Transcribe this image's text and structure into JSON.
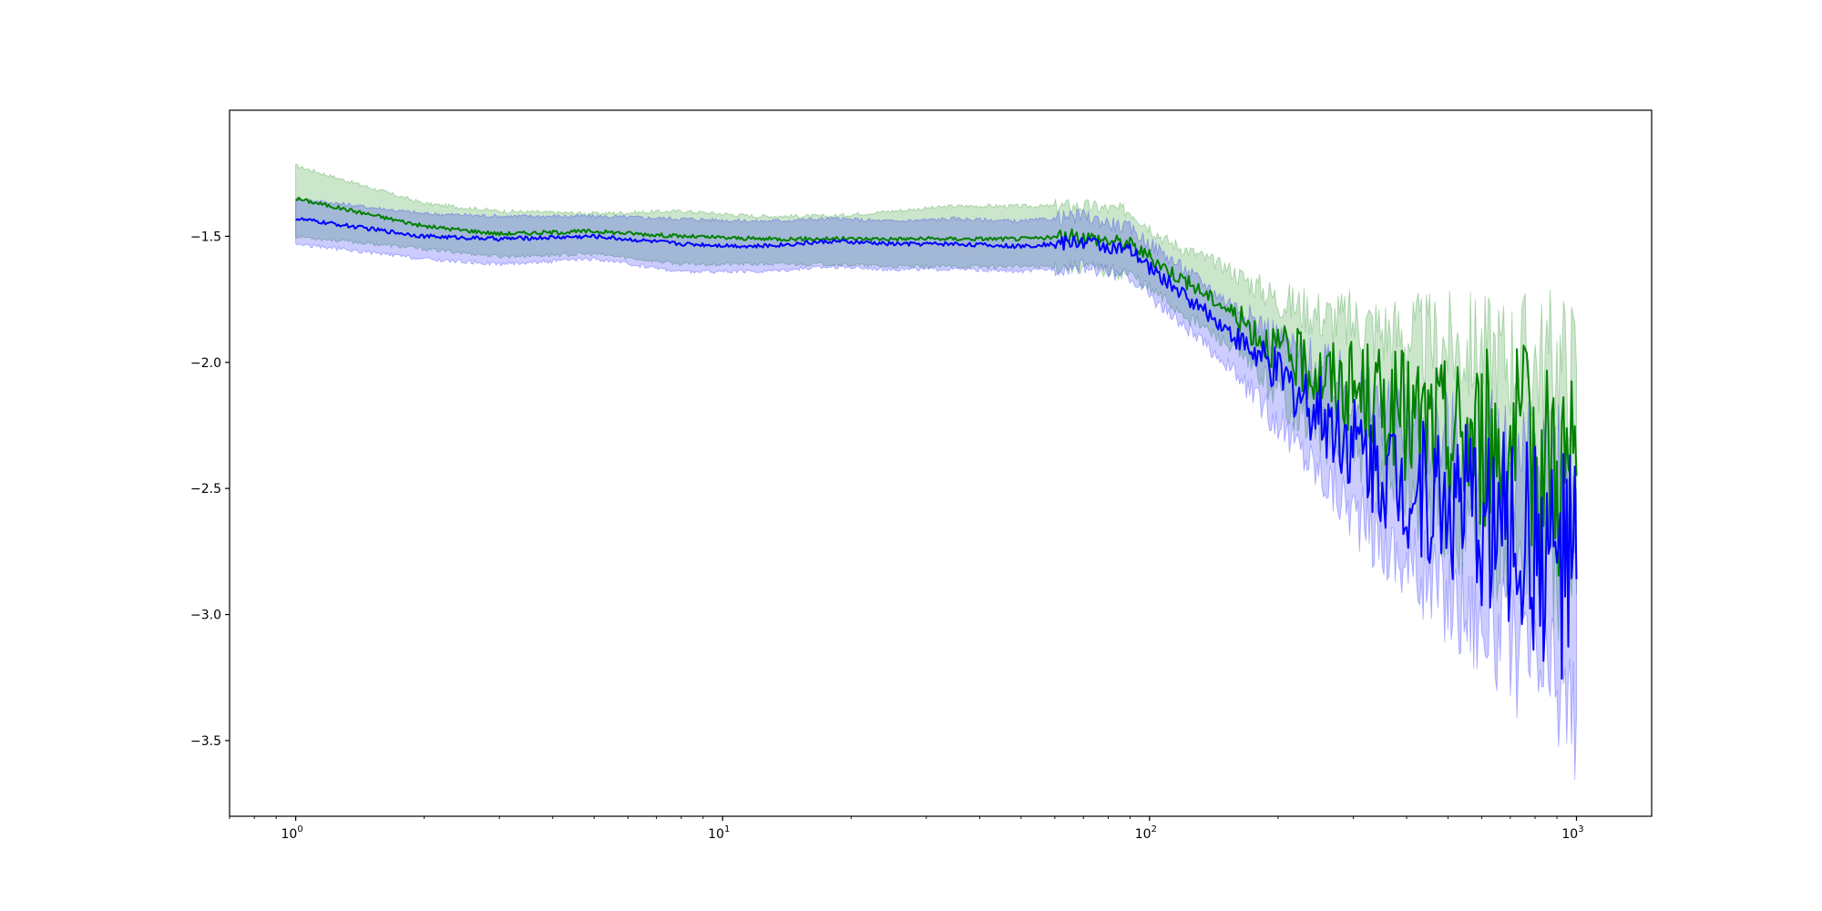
{
  "chart_data": {
    "type": "line",
    "title": "",
    "xlabel": "",
    "ylabel": "",
    "xscale": "log",
    "xlim": [
      0.7,
      1500
    ],
    "ylim": [
      -3.8,
      -1.0
    ],
    "grid": false,
    "legend": "none",
    "x_ticks": [
      1,
      10,
      100,
      1000
    ],
    "x_tick_labels": [
      {
        "base": "10",
        "exp": "0"
      },
      {
        "base": "10",
        "exp": "1"
      },
      {
        "base": "10",
        "exp": "2"
      },
      {
        "base": "10",
        "exp": "3"
      }
    ],
    "y_ticks": [
      -1.5,
      -2.0,
      -2.5,
      -3.0,
      -3.5
    ],
    "y_tick_labels": [
      "−1.5",
      "−2.0",
      "−2.5",
      "−3.0",
      "−3.5"
    ],
    "series": [
      {
        "color": "#008000",
        "band_color": "#008000",
        "band_opacity": 0.2,
        "x": [
          1,
          2,
          3,
          5,
          8,
          12,
          18,
          25,
          35,
          50,
          70,
          90,
          110,
          150,
          200,
          260,
          330,
          400,
          500,
          600,
          700,
          800,
          900,
          1000
        ],
        "mean": [
          -1.35,
          -1.46,
          -1.49,
          -1.48,
          -1.5,
          -1.51,
          -1.51,
          -1.51,
          -1.51,
          -1.51,
          -1.5,
          -1.53,
          -1.63,
          -1.78,
          -1.95,
          -2.06,
          -2.14,
          -2.22,
          -2.28,
          -2.3,
          -2.33,
          -2.36,
          -2.4,
          -2.45
        ],
        "upper": [
          -1.22,
          -1.37,
          -1.4,
          -1.41,
          -1.4,
          -1.42,
          -1.42,
          -1.4,
          -1.38,
          -1.38,
          -1.38,
          -1.4,
          -1.52,
          -1.62,
          -1.75,
          -1.82,
          -1.86,
          -1.9,
          -1.93,
          -1.95,
          -1.97,
          -1.99,
          -2.0,
          -2.02
        ],
        "lower": [
          -1.5,
          -1.55,
          -1.58,
          -1.57,
          -1.61,
          -1.61,
          -1.61,
          -1.62,
          -1.62,
          -1.62,
          -1.62,
          -1.65,
          -1.76,
          -1.92,
          -2.12,
          -2.3,
          -2.42,
          -2.52,
          -2.62,
          -2.66,
          -2.72,
          -2.76,
          -2.82,
          -2.92
        ]
      },
      {
        "color": "#0000ff",
        "band_color": "#0000ff",
        "band_opacity": 0.2,
        "x": [
          1,
          2,
          3,
          5,
          8,
          12,
          18,
          25,
          35,
          50,
          70,
          90,
          110,
          150,
          200,
          260,
          330,
          400,
          500,
          600,
          700,
          800,
          900,
          1000
        ],
        "mean": [
          -1.43,
          -1.5,
          -1.51,
          -1.5,
          -1.53,
          -1.54,
          -1.52,
          -1.53,
          -1.53,
          -1.54,
          -1.52,
          -1.56,
          -1.68,
          -1.86,
          -2.05,
          -2.22,
          -2.38,
          -2.48,
          -2.55,
          -2.62,
          -2.68,
          -2.74,
          -2.8,
          -2.86
        ],
        "upper": [
          -1.35,
          -1.41,
          -1.42,
          -1.42,
          -1.43,
          -1.44,
          -1.43,
          -1.44,
          -1.43,
          -1.44,
          -1.42,
          -1.47,
          -1.58,
          -1.75,
          -1.9,
          -2.04,
          -2.16,
          -2.24,
          -2.3,
          -2.34,
          -2.38,
          -2.42,
          -2.45,
          -2.5
        ],
        "lower": [
          -1.53,
          -1.59,
          -1.61,
          -1.59,
          -1.64,
          -1.64,
          -1.62,
          -1.63,
          -1.63,
          -1.64,
          -1.62,
          -1.66,
          -1.8,
          -2.0,
          -2.24,
          -2.46,
          -2.66,
          -2.8,
          -2.92,
          -3.02,
          -3.12,
          -3.2,
          -3.28,
          -3.4
        ]
      }
    ]
  }
}
